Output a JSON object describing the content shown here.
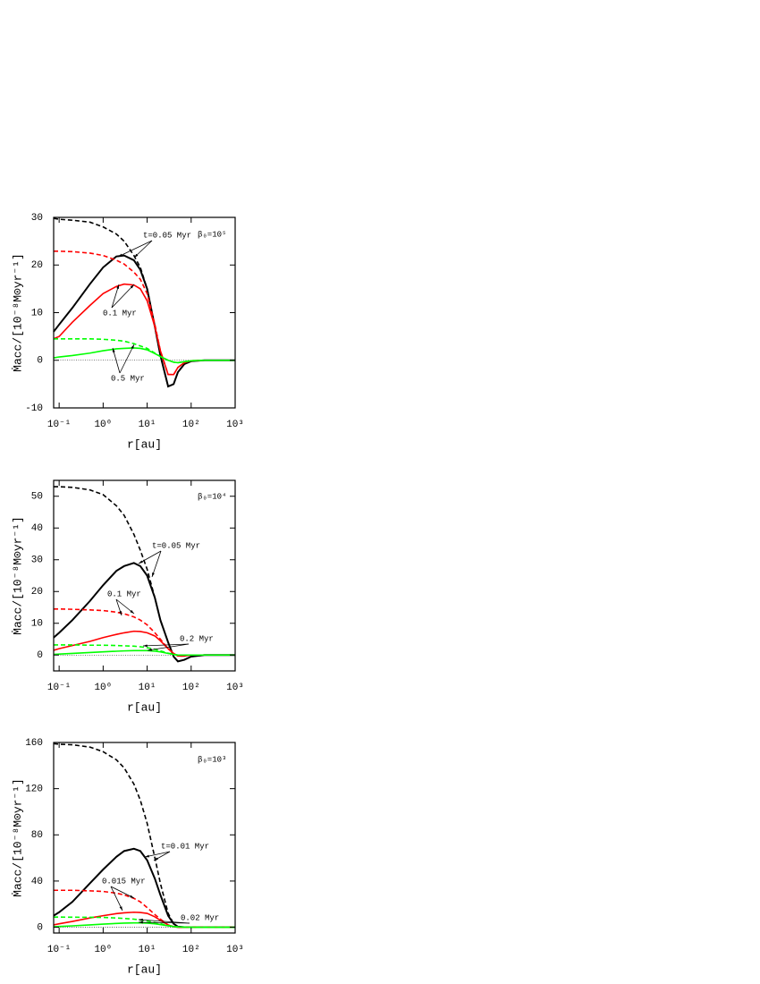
{
  "chart_data": [
    {
      "type": "line",
      "xscale": "log",
      "xlabel": "r[au]",
      "ylabel": "Ṁacc/[10⁻⁸M⊙yr⁻¹]",
      "xlim": [
        0.075,
        1000
      ],
      "xticks": [
        {
          "value": 0.1,
          "label": "10⁻¹"
        },
        {
          "value": 1,
          "label": "10⁰"
        },
        {
          "value": 10,
          "label": "10¹"
        },
        {
          "value": 100,
          "label": "10²"
        },
        {
          "value": 1000,
          "label": "10³"
        }
      ],
      "ylim": [
        -10,
        30
      ],
      "yticks": [
        -10,
        0,
        10,
        20,
        30
      ],
      "annotations": [
        "t=0.05 Myr",
        "0.1 Myr",
        "0.5 Myr",
        "β₀=10⁵"
      ],
      "x": [
        0.075,
        0.1,
        0.2,
        0.5,
        1,
        2,
        3,
        5,
        7,
        10,
        15,
        20,
        30,
        40,
        50,
        70,
        100,
        200,
        500,
        1000
      ],
      "series": [
        {
          "color": "#000000",
          "style": "dashed",
          "values": [
            29.8,
            29.6,
            29.4,
            29,
            28,
            26.5,
            25,
            22,
            19.5,
            15,
            7,
            1,
            -5.5,
            -5,
            -2.5,
            -0.8,
            -0.2,
            0,
            0,
            0
          ]
        },
        {
          "color": "#000000",
          "style": "solid",
          "values": [
            6,
            7.5,
            11,
            16,
            19.5,
            21.8,
            22,
            21,
            19,
            15,
            7,
            1,
            -5.5,
            -5,
            -2.5,
            -0.8,
            -0.2,
            0,
            0,
            0
          ]
        },
        {
          "color": "#ff0000",
          "style": "dashed",
          "values": [
            22.9,
            22.9,
            22.8,
            22.5,
            22,
            21,
            20.2,
            18.5,
            17,
            14,
            7.5,
            2,
            -3,
            -3,
            -1.5,
            -0.5,
            -0.1,
            0,
            0,
            0
          ]
        },
        {
          "color": "#ff0000",
          "style": "solid",
          "values": [
            4.5,
            5,
            8,
            11.5,
            14,
            15.5,
            16,
            15.8,
            15,
            12.5,
            7,
            2,
            -3,
            -3,
            -1.5,
            -0.5,
            -0.1,
            0,
            0,
            0
          ]
        },
        {
          "color": "#00ff00",
          "style": "dashed",
          "values": [
            4.5,
            4.5,
            4.5,
            4.5,
            4.4,
            4.2,
            4,
            3.5,
            3,
            2.5,
            1.5,
            0.8,
            0,
            -0.4,
            -0.5,
            -0.3,
            -0.1,
            0,
            0,
            0
          ]
        },
        {
          "color": "#00ff00",
          "style": "solid",
          "values": [
            0.5,
            0.7,
            1,
            1.5,
            2,
            2.4,
            2.5,
            2.6,
            2.5,
            2.2,
            1.4,
            0.8,
            0,
            -0.4,
            -0.5,
            -0.3,
            -0.1,
            0,
            0,
            0
          ]
        }
      ]
    },
    {
      "type": "line",
      "xscale": "log",
      "xlabel": "r[au]",
      "ylabel": "Ṁacc/[10⁻⁸M⊙yr⁻¹]",
      "xlim": [
        0.075,
        1000
      ],
      "xticks": [
        {
          "value": 0.1,
          "label": "10⁻¹"
        },
        {
          "value": 1,
          "label": "10⁰"
        },
        {
          "value": 10,
          "label": "10¹"
        },
        {
          "value": 100,
          "label": "10²"
        },
        {
          "value": 1000,
          "label": "10³"
        }
      ],
      "ylim": [
        -5,
        55
      ],
      "yticks": [
        0,
        10,
        20,
        30,
        40,
        50
      ],
      "annotations": [
        "t=0.05 Myr",
        "0.1 Myr",
        "0.2 Myr",
        "β₀=10⁴"
      ],
      "x": [
        0.075,
        0.1,
        0.2,
        0.5,
        1,
        2,
        3,
        5,
        7,
        10,
        15,
        20,
        30,
        40,
        50,
        70,
        100,
        200,
        500,
        1000
      ],
      "series": [
        {
          "color": "#000000",
          "style": "dashed",
          "values": [
            53,
            53,
            52.8,
            52,
            50.5,
            47,
            44,
            38,
            33,
            27,
            18,
            11,
            4,
            -0.5,
            -2,
            -1.5,
            -0.5,
            0,
            0,
            0
          ]
        },
        {
          "color": "#000000",
          "style": "solid",
          "values": [
            5.5,
            7,
            11,
            17,
            22,
            26.5,
            28,
            29,
            28,
            25,
            18,
            11,
            4,
            -0.5,
            -2,
            -1.5,
            -0.5,
            0,
            0,
            0
          ]
        },
        {
          "color": "#ff0000",
          "style": "dashed",
          "values": [
            14.5,
            14.5,
            14.4,
            14.2,
            14,
            13.5,
            13,
            12,
            11,
            9.5,
            7,
            5,
            2,
            0.5,
            -0.3,
            -0.3,
            0,
            0,
            0,
            0
          ]
        },
        {
          "color": "#ff0000",
          "style": "solid",
          "values": [
            1.5,
            2,
            3,
            4.3,
            5.5,
            6.5,
            7,
            7.5,
            7.4,
            7,
            6,
            4.5,
            2,
            0.5,
            -0.3,
            -0.3,
            0,
            0,
            0,
            0
          ]
        },
        {
          "color": "#00ff00",
          "style": "dashed",
          "values": [
            3.2,
            3.2,
            3.2,
            3.1,
            3.1,
            3,
            2.9,
            2.8,
            2.6,
            2.3,
            1.8,
            1.3,
            0.6,
            0.2,
            0,
            0,
            0,
            0,
            0,
            0
          ]
        },
        {
          "color": "#00ff00",
          "style": "solid",
          "values": [
            0.2,
            0.3,
            0.5,
            0.8,
            1,
            1.2,
            1.3,
            1.4,
            1.4,
            1.4,
            1.2,
            1,
            0.5,
            0.2,
            0,
            0,
            0,
            0,
            0,
            0
          ]
        }
      ]
    },
    {
      "type": "line",
      "xscale": "log",
      "xlabel": "r[au]",
      "ylabel": "Ṁacc/[10⁻⁸M⊙yr⁻¹]",
      "xlim": [
        0.075,
        1000
      ],
      "xticks": [
        {
          "value": 0.1,
          "label": "10⁻¹"
        },
        {
          "value": 1,
          "label": "10⁰"
        },
        {
          "value": 10,
          "label": "10¹"
        },
        {
          "value": 100,
          "label": "10²"
        },
        {
          "value": 1000,
          "label": "10³"
        }
      ],
      "ylim": [
        -5,
        160
      ],
      "yticks": [
        0,
        40,
        80,
        120,
        160
      ],
      "annotations": [
        "t=0.01 Myr",
        "0.015 Myr",
        "0.02 Myr",
        "β₀=10³"
      ],
      "x": [
        0.075,
        0.1,
        0.2,
        0.5,
        1,
        2,
        3,
        5,
        7,
        10,
        15,
        20,
        30,
        40,
        50,
        70,
        100,
        200,
        500,
        1000
      ],
      "series": [
        {
          "color": "#000000",
          "style": "dashed",
          "values": [
            159,
            158.5,
            158,
            156,
            152,
            145,
            138,
            124,
            110,
            90,
            60,
            38,
            12,
            3,
            0.5,
            0,
            0,
            0,
            0,
            0
          ]
        },
        {
          "color": "#000000",
          "style": "solid",
          "values": [
            10,
            13,
            22,
            38,
            50,
            61,
            66,
            68,
            66,
            58,
            42,
            28,
            10,
            3,
            0.5,
            0,
            0,
            0,
            0,
            0
          ]
        },
        {
          "color": "#ff0000",
          "style": "dashed",
          "values": [
            32,
            32,
            32,
            31.5,
            31,
            29.5,
            28,
            25,
            22,
            17,
            11,
            7,
            2,
            0.5,
            0,
            0,
            0,
            0,
            0,
            0
          ]
        },
        {
          "color": "#ff0000",
          "style": "solid",
          "values": [
            2,
            3,
            5,
            8,
            10,
            11.8,
            12.5,
            13,
            12.8,
            12,
            9,
            6,
            2,
            0.5,
            0,
            0,
            0,
            0,
            0,
            0
          ]
        },
        {
          "color": "#00ff00",
          "style": "dashed",
          "values": [
            8.8,
            8.8,
            8.7,
            8.6,
            8.5,
            8,
            7.6,
            7,
            6.3,
            5.5,
            4,
            3,
            1.5,
            0.7,
            0.3,
            0.1,
            0,
            0,
            0,
            0
          ]
        },
        {
          "color": "#00ff00",
          "style": "solid",
          "values": [
            0.5,
            0.7,
            1.2,
            2,
            2.7,
            3.3,
            3.6,
            3.8,
            3.8,
            3.6,
            3,
            2.3,
            1.2,
            0.6,
            0.3,
            0.1,
            0,
            0,
            0,
            0
          ]
        }
      ]
    }
  ]
}
